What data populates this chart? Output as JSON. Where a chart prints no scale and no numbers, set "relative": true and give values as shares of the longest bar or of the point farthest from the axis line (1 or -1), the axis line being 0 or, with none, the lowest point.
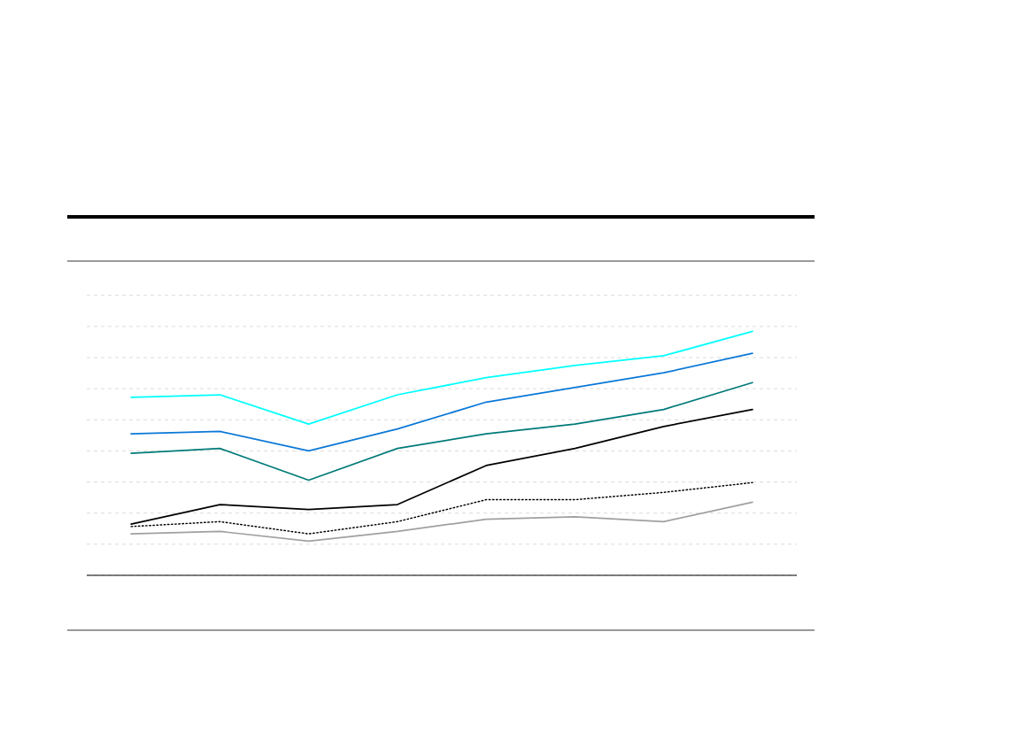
{
  "chart_data": {
    "type": "line",
    "relative": true,
    "grid": "y",
    "tick_labels": false,
    "categories": [
      null,
      null,
      null,
      null,
      null,
      null,
      null,
      null
    ],
    "series": [
      {
        "color": "#00ffff",
        "values": [
          0.73,
          0.74,
          0.62,
          0.74,
          0.81,
          0.86,
          0.9,
          1
        ]
      },
      {
        "color": "#0a78d7",
        "values": [
          0.58,
          0.59,
          0.51,
          0.6,
          0.71,
          0.77,
          0.83,
          0.91
        ]
      },
      {
        "color": "#007a78",
        "values": [
          0.5,
          0.52,
          0.39,
          0.52,
          0.58,
          0.62,
          0.68,
          0.79
        ]
      },
      {
        "color": "#000000",
        "values": [
          0.21,
          0.29,
          0.27,
          0.29,
          0.45,
          0.52,
          0.61,
          0.68
        ]
      },
      {
        "color": "#000000",
        "line_style": "dotted",
        "values": [
          0.2,
          0.22,
          0.17,
          0.22,
          0.31,
          0.31,
          0.34,
          0.38
        ]
      },
      {
        "color": "#a0a0a0",
        "values": [
          0.17,
          0.18,
          0.14,
          0.18,
          0.23,
          0.24,
          0.22,
          0.3
        ]
      }
    ]
  }
}
